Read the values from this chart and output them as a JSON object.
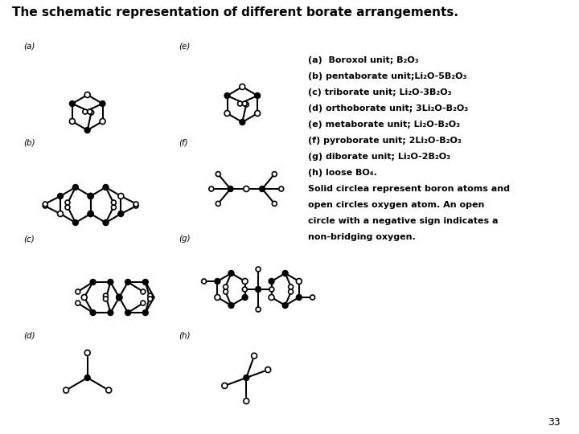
{
  "title": "The schematic representation of different borate arrangements.",
  "title_fontsize": 11,
  "background_color": "#ffffff",
  "text_color": "#000000",
  "legend_lines": [
    "(a)  Boroxol unit; B₂O₃",
    "(b) pentaborate unit;Li₂O-5B₂O₃",
    "(c) triborate unit; Li₂O-3B₂O₃",
    "(d) orthoborate unit; 3Li₂O-B₂O₃",
    "(e) metaborate unit; Li₂O-B₂O₃",
    "(f) pyroborate unit; 2Li₂O-B₂O₃",
    "(g) diborate unit; Li₂O-2B₂O₃",
    "(h) loose BO₄.",
    "Solid circlea represent boron atoms and",
    "open circles oxygen atom. An open",
    "circle with a negative sign indicates a",
    "non-bridging oxygen."
  ],
  "page_number": "33"
}
